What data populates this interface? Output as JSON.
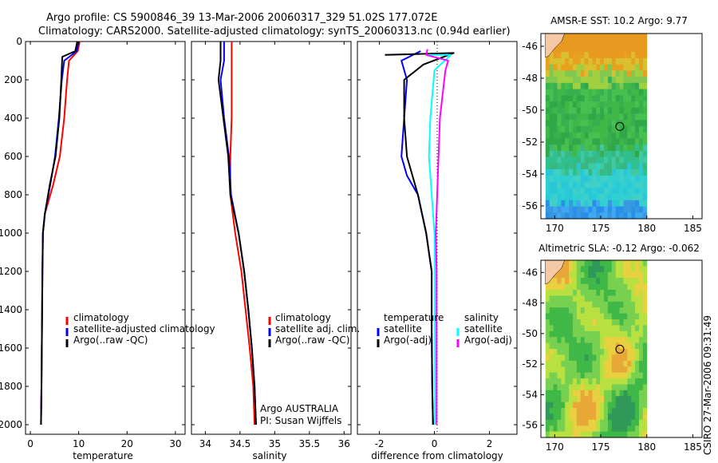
{
  "title": {
    "line1": "Argo profile: CS 5900846_39 13-Mar-2006 20060317_329 51.02S 177.072E",
    "line2": "Climatology: CARS2000. Satellite-adjusted climatology: synTS_20060313.nc (0.94d earlier)"
  },
  "footer": {
    "credit": "CSIRO 27-Mar-2006 09:31:49",
    "argo_group": "Argo AUSTRALIA",
    "pi": "PI: Susan Wijffels"
  },
  "colors": {
    "climatology": "#ff0000",
    "satellite": "#0000ff",
    "argo": "#000000",
    "satellite_salinity": "#00ffff",
    "argo_salinity_adj": "#ff00ff",
    "land": "#f5c9a6"
  },
  "chart_data": [
    {
      "id": "temperature",
      "type": "line",
      "xlabel": "temperature",
      "ylabel": "",
      "xlim": [
        -1,
        32
      ],
      "ylim": [
        0,
        2050
      ],
      "y_inverted": true,
      "xticks": [
        0,
        10,
        20,
        30
      ],
      "yticks": [
        0,
        200,
        400,
        600,
        800,
        1000,
        1200,
        1400,
        1600,
        1800,
        2000
      ],
      "legend": [
        "climatology",
        "satellite-adjusted climatology",
        "Argo(..raw -QC)"
      ],
      "series": [
        {
          "name": "climatology",
          "color": "#ff0000",
          "x": [
            10.2,
            9.8,
            8.0,
            7.6,
            7.0,
            6.1,
            4.7,
            3.0,
            2.6,
            2.5,
            2.4,
            2.3,
            2.2
          ],
          "y": [
            0,
            50,
            100,
            200,
            400,
            600,
            750,
            900,
            1000,
            1200,
            1500,
            1800,
            2000
          ]
        },
        {
          "name": "satellite-adjusted climatology",
          "color": "#0000ff",
          "x": [
            10.0,
            9.6,
            7.0,
            6.5,
            5.9,
            5.1,
            4.1,
            3.0,
            2.6,
            2.5,
            2.4,
            2.3,
            2.2
          ],
          "y": [
            0,
            50,
            100,
            200,
            400,
            600,
            750,
            900,
            1000,
            1200,
            1500,
            1800,
            2000
          ]
        },
        {
          "name": "Argo(..raw -QC)",
          "color": "#000000",
          "x": [
            9.7,
            9.3,
            6.6,
            6.4,
            6.0,
            5.2,
            4.0,
            3.0,
            2.6,
            2.5,
            2.4,
            2.3,
            2.2
          ],
          "y": [
            0,
            50,
            80,
            200,
            400,
            600,
            750,
            900,
            1000,
            1200,
            1500,
            1800,
            2000
          ]
        }
      ]
    },
    {
      "id": "salinity",
      "type": "line",
      "xlabel": "salinity",
      "xlim": [
        33.8,
        36.1
      ],
      "ylim": [
        0,
        2050
      ],
      "y_inverted": true,
      "xticks": [
        34,
        34.5,
        35,
        35.5,
        36
      ],
      "xtick_labels": [
        "34",
        "34.5",
        "35",
        "35.5",
        "36"
      ],
      "legend": [
        "climatology",
        "satellite adj. clim.",
        "Argo(..raw -QC)"
      ],
      "series": [
        {
          "name": "climatology",
          "color": "#ff0000",
          "x": [
            34.38,
            34.38,
            34.38,
            34.38,
            34.36,
            34.36,
            34.43,
            34.52,
            34.58,
            34.64,
            34.69,
            34.71
          ],
          "y": [
            0,
            100,
            200,
            400,
            600,
            800,
            1000,
            1200,
            1400,
            1600,
            1800,
            2000
          ]
        },
        {
          "name": "satellite adj. clim.",
          "color": "#0000ff",
          "x": [
            34.27,
            34.27,
            34.22,
            34.27,
            34.34,
            34.37,
            34.48,
            34.56,
            34.62,
            34.67,
            34.71,
            34.73
          ],
          "y": [
            0,
            100,
            200,
            400,
            600,
            800,
            1000,
            1200,
            1400,
            1600,
            1800,
            2000
          ]
        },
        {
          "name": "Argo(..raw -QC)",
          "color": "#000000",
          "x": [
            34.22,
            34.22,
            34.19,
            34.26,
            34.33,
            34.36,
            34.48,
            34.56,
            34.62,
            34.67,
            34.71,
            34.73
          ],
          "y": [
            0,
            100,
            200,
            400,
            600,
            800,
            1000,
            1200,
            1400,
            1600,
            1800,
            2000
          ]
        }
      ]
    },
    {
      "id": "difference",
      "type": "line",
      "xlabel": "difference from climatology",
      "xlim": [
        -2.8,
        3.0
      ],
      "ylim": [
        0,
        2050
      ],
      "y_inverted": true,
      "xticks": [
        -2,
        0,
        2
      ],
      "legend_temperature_title": "temperature",
      "legend_salinity_title": "salinity",
      "legend": [
        "satellite",
        "Argo(-adj)",
        "satellite",
        "Argo(-adj)"
      ],
      "series": [
        {
          "name": "temperature satellite",
          "color": "#0000ff",
          "x": [
            -0.5,
            -1.2,
            -1.0,
            -1.1,
            -1.2,
            -1.0,
            -0.6,
            -0.3,
            -0.1,
            -0.1,
            -0.08,
            -0.05
          ],
          "y": [
            50,
            100,
            200,
            400,
            600,
            700,
            800,
            1000,
            1200,
            1500,
            1800,
            2000
          ]
        },
        {
          "name": "temperature Argo(-adj)",
          "color": "#000000",
          "x": [
            -1.8,
            0.7,
            -0.4,
            -1.1,
            -1.1,
            -1.0,
            -0.6,
            -0.3,
            -0.1,
            -0.1,
            -0.08,
            -0.05
          ],
          "y": [
            70,
            60,
            120,
            200,
            400,
            600,
            800,
            1000,
            1200,
            1500,
            1800,
            2000
          ]
        },
        {
          "name": "salinity satellite",
          "color": "#00ffff",
          "x": [
            -0.3,
            0.6,
            0.0,
            -0.15,
            -0.2,
            -0.1,
            0.0,
            0.02,
            0.02,
            0.02,
            0.02,
            0.02
          ],
          "y": [
            70,
            70,
            150,
            400,
            600,
            800,
            1000,
            1200,
            1400,
            1600,
            1800,
            2000
          ]
        },
        {
          "name": "salinity Argo(-adj)",
          "color": "#ff00ff",
          "x": [
            -0.25,
            -0.3,
            0.5,
            0.4,
            0.2,
            0.1,
            0.05,
            0.08,
            0.08,
            0.08,
            0.08,
            0.08
          ],
          "y": [
            40,
            70,
            100,
            150,
            400,
            800,
            1000,
            1200,
            1400,
            1600,
            1800,
            2000
          ]
        }
      ]
    },
    {
      "id": "sst_map",
      "type": "heatmap",
      "title": "AMSR-E SST: 10.2 Argo: 9.77",
      "xlim": [
        168.5,
        186
      ],
      "ylim": [
        -56.8,
        -45.2
      ],
      "xticks": [
        170,
        175,
        180,
        185
      ],
      "yticks": [
        -46,
        -48,
        -50,
        -52,
        -54,
        -56
      ],
      "data_xrange": [
        169,
        180
      ],
      "data_yrange": [
        -56.8,
        -45.2
      ],
      "float_position": [
        177.072,
        -51.02
      ]
    },
    {
      "id": "sla_map",
      "type": "heatmap",
      "title": "Altimetric SLA: -0.12 Argo: -0.062",
      "xlim": [
        168.5,
        186
      ],
      "ylim": [
        -56.8,
        -45.2
      ],
      "xticks": [
        170,
        175,
        180,
        185
      ],
      "yticks": [
        -46,
        -48,
        -50,
        -52,
        -54,
        -56
      ],
      "data_xrange": [
        169,
        180
      ],
      "data_yrange": [
        -56.8,
        -45.2
      ],
      "float_position": [
        177.072,
        -51.02
      ]
    }
  ]
}
